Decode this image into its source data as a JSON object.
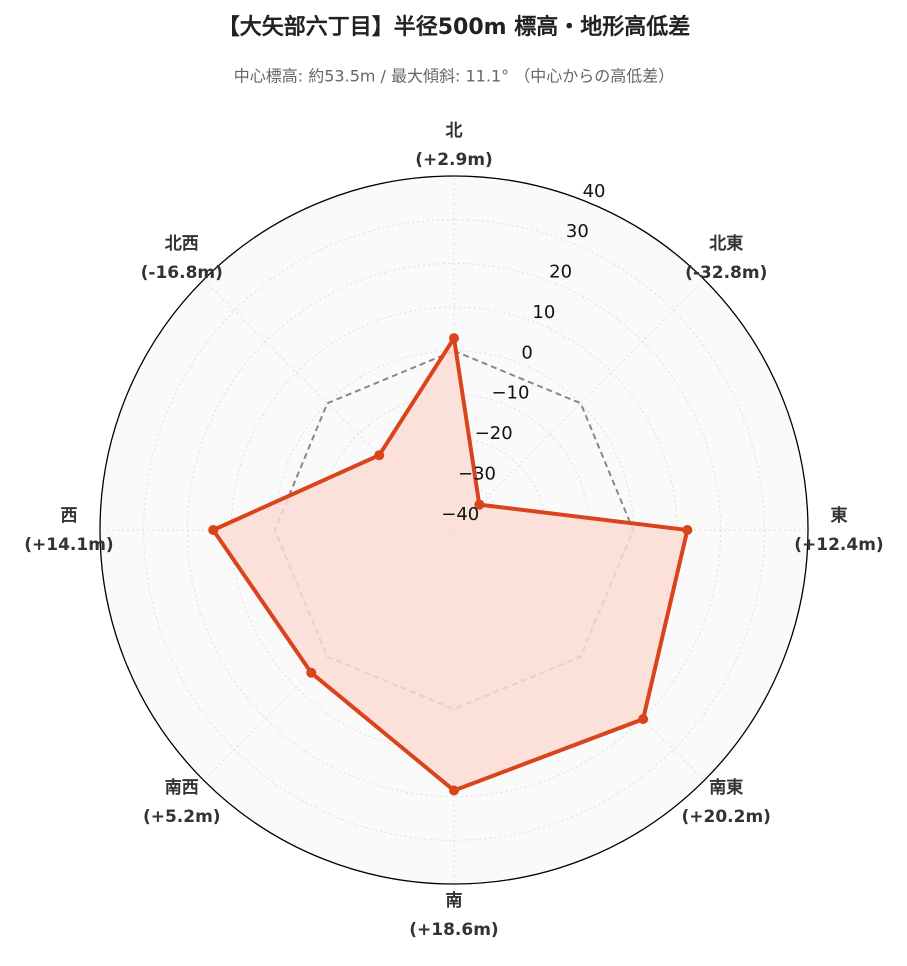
{
  "chart_data": {
    "type": "radar",
    "title": "【大矢部六丁目】半径500m 標高・地形高低差",
    "subtitle": "中心標高: 約53.5m / 最大傾斜: 11.1° （中心からの高低差）",
    "categories": [
      "北",
      "北東",
      "東",
      "南東",
      "南",
      "南西",
      "西",
      "北西"
    ],
    "series": [
      {
        "name": "高低差",
        "color": "#d9441c",
        "fill": "#fbdcd3",
        "values": [
          2.9,
          -32.8,
          12.4,
          20.2,
          18.6,
          5.2,
          14.1,
          -16.8
        ],
        "value_labels": [
          "(+2.9m)",
          "(-32.8m)",
          "(+12.4m)",
          "(+20.2m)",
          "(+18.6m)",
          "(+5.2m)",
          "(+14.1m)",
          "(-16.8m)"
        ]
      }
    ],
    "baseline": 0,
    "ylim": [
      -41,
      40
    ],
    "yticks": [
      {
        "value": -40,
        "label": "−40"
      },
      {
        "value": -30,
        "label": "−30"
      },
      {
        "value": -20,
        "label": "−20"
      },
      {
        "value": -10,
        "label": "−10"
      },
      0,
      10,
      20,
      30,
      40
    ],
    "grid": true
  }
}
